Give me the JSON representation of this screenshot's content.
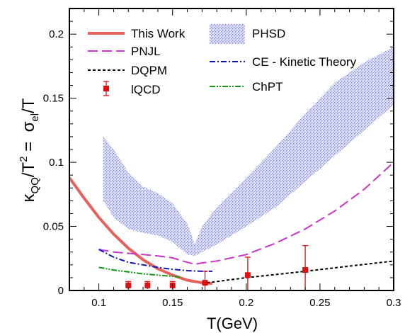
{
  "chart_data": {
    "type": "line",
    "xlabel": "T(GeV)",
    "ylabel": {
      "kappa": "κ",
      "kappa_sub": "QQ",
      "over": "/T",
      "t_sup": "2",
      "equals": " =  ",
      "sigma": "σ",
      "sigma_sub": "el",
      "over2": "/T"
    },
    "xlim": [
      0.08,
      0.3
    ],
    "ylim": [
      0,
      0.22
    ],
    "x_ticks": [
      0.1,
      0.15,
      0.2,
      0.25,
      0.3
    ],
    "x_tick_labels": [
      "0.1",
      "0.15",
      "0.2",
      "0.25",
      "0.3"
    ],
    "y_ticks": [
      0,
      0.05,
      0.1,
      0.15,
      0.2
    ],
    "y_tick_labels": [
      "0",
      "0.05",
      "0.1",
      "0.15",
      "0.2"
    ],
    "grid": false,
    "legend_placement": "top",
    "series": [
      {
        "name": "This Work",
        "style": "solid",
        "color": "#e8605a",
        "x": [
          0.08,
          0.09,
          0.1,
          0.11,
          0.12,
          0.13,
          0.14,
          0.15,
          0.16,
          0.17,
          0.177
        ],
        "y": [
          0.088,
          0.072,
          0.057,
          0.044,
          0.033,
          0.024,
          0.017,
          0.012,
          0.008,
          0.006,
          0.0055
        ]
      },
      {
        "name": "PNJL",
        "style": "long-dash",
        "color": "#cc33cc",
        "x": [
          0.1,
          0.11,
          0.12,
          0.13,
          0.14,
          0.15,
          0.16,
          0.165,
          0.17,
          0.18,
          0.2,
          0.22,
          0.24,
          0.26,
          0.28,
          0.3
        ],
        "y": [
          0.032,
          0.03,
          0.029,
          0.028,
          0.027,
          0.0255,
          0.022,
          0.0205,
          0.0215,
          0.023,
          0.028,
          0.037,
          0.048,
          0.062,
          0.079,
          0.1
        ]
      },
      {
        "name": "DQPM",
        "style": "short-dash",
        "color": "#000000",
        "x": [
          0.17,
          0.2,
          0.24,
          0.27,
          0.3
        ],
        "y": [
          0.0055,
          0.01,
          0.015,
          0.019,
          0.023
        ]
      },
      {
        "name": "CE - Kinetic Theory",
        "style": "dash-dot",
        "color": "#1111cc",
        "x": [
          0.1,
          0.11,
          0.12,
          0.13,
          0.14,
          0.15,
          0.16,
          0.17,
          0.177
        ],
        "y": [
          0.032,
          0.026,
          0.022,
          0.02,
          0.018,
          0.0165,
          0.0155,
          0.015,
          0.015
        ]
      },
      {
        "name": "ChPT",
        "style": "dash-dot-dot",
        "color": "#119911",
        "x": [
          0.1,
          0.11,
          0.12,
          0.13,
          0.14,
          0.15,
          0.155
        ],
        "y": [
          0.018,
          0.016,
          0.0145,
          0.013,
          0.012,
          0.011,
          0.0105
        ]
      }
    ],
    "band": {
      "name": "PHSD",
      "color": "#9aa0dd",
      "x": [
        0.103,
        0.11,
        0.12,
        0.13,
        0.14,
        0.15,
        0.16,
        0.165,
        0.17,
        0.18,
        0.2,
        0.22,
        0.24,
        0.26,
        0.28,
        0.3
      ],
      "upper": [
        0.12,
        0.11,
        0.092,
        0.081,
        0.076,
        0.068,
        0.052,
        0.036,
        0.05,
        0.065,
        0.088,
        0.112,
        0.138,
        0.162,
        0.178,
        0.19
      ],
      "lower": [
        0.07,
        0.057,
        0.048,
        0.045,
        0.043,
        0.038,
        0.028,
        0.027,
        0.03,
        0.036,
        0.05,
        0.065,
        0.085,
        0.105,
        0.125,
        0.145
      ]
    },
    "points": {
      "name": "lQCD",
      "color": "#dd1111",
      "x": [
        0.12,
        0.133,
        0.15,
        0.172,
        0.201,
        0.24
      ],
      "y": [
        0.004,
        0.004,
        0.004,
        0.006,
        0.012,
        0.016
      ],
      "err": [
        0.003,
        0.003,
        0.003,
        0.009,
        0.014,
        0.019
      ]
    }
  }
}
